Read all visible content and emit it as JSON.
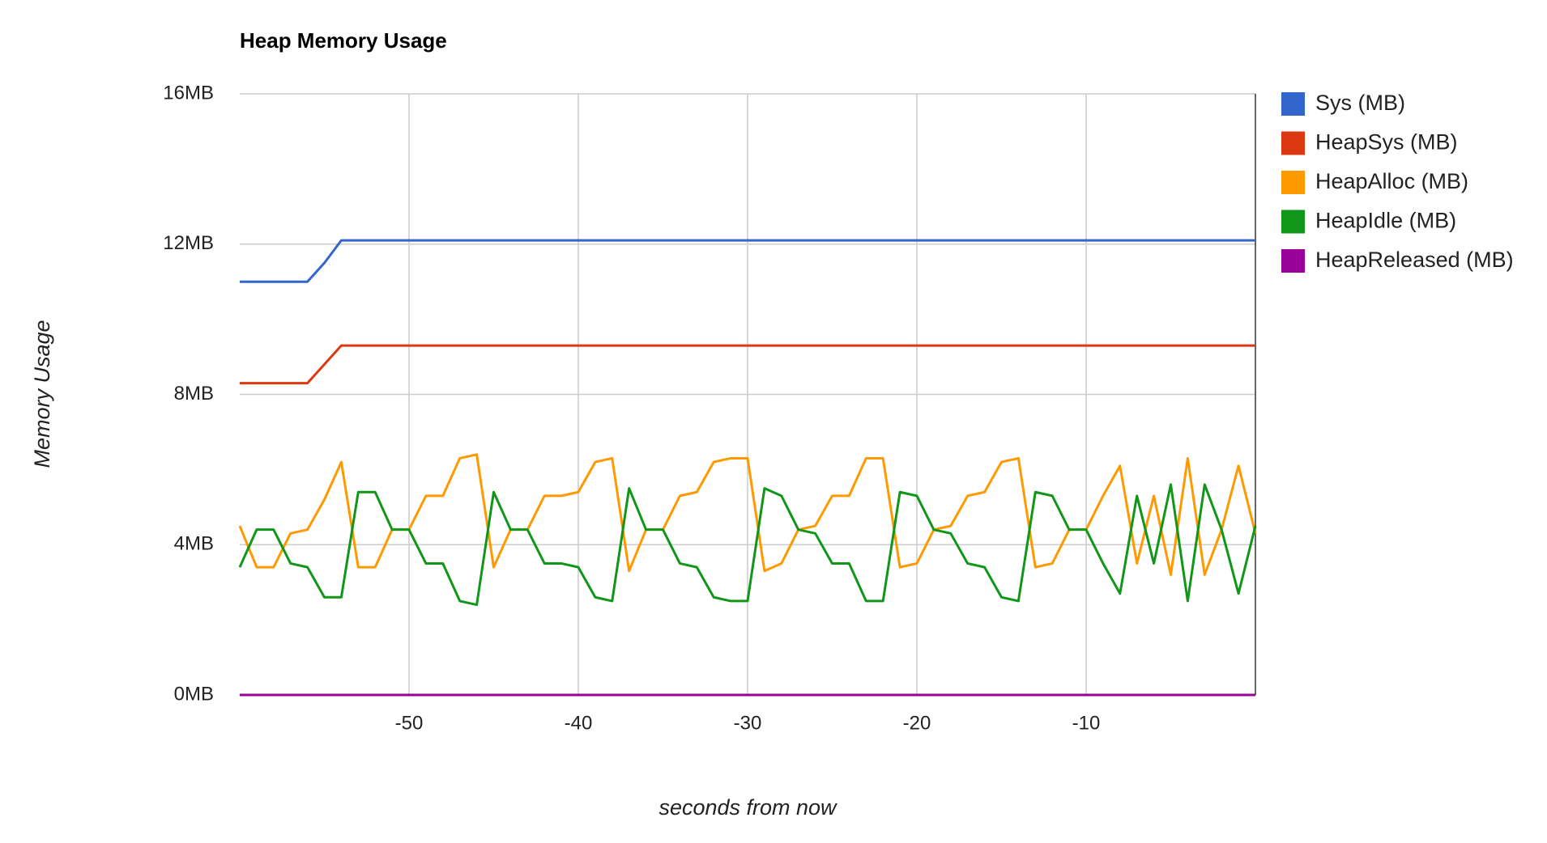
{
  "chart_data": {
    "type": "line",
    "title": "Heap Memory Usage",
    "x_label": "seconds from now",
    "y_label": "Memory Usage",
    "x": [
      -60,
      -59,
      -58,
      -57,
      -56,
      -55,
      -54,
      -53,
      -52,
      -51,
      -50,
      -49,
      -48,
      -47,
      -46,
      -45,
      -44,
      -43,
      -42,
      -41,
      -40,
      -39,
      -38,
      -37,
      -36,
      -35,
      -34,
      -33,
      -32,
      -31,
      -30,
      -29,
      -28,
      -27,
      -26,
      -25,
      -24,
      -23,
      -22,
      -21,
      -20,
      -19,
      -18,
      -17,
      -16,
      -15,
      -14,
      -13,
      -12,
      -11,
      -10,
      -9,
      -8,
      -7,
      -6,
      -5,
      -4,
      -3,
      -2,
      -1,
      0
    ],
    "series": [
      {
        "name": "Sys (MB)",
        "color": "#3366cc",
        "values": [
          11.0,
          11.0,
          11.0,
          11.0,
          11.0,
          11.5,
          12.1,
          12.1,
          12.1,
          12.1,
          12.1,
          12.1,
          12.1,
          12.1,
          12.1,
          12.1,
          12.1,
          12.1,
          12.1,
          12.1,
          12.1,
          12.1,
          12.1,
          12.1,
          12.1,
          12.1,
          12.1,
          12.1,
          12.1,
          12.1,
          12.1,
          12.1,
          12.1,
          12.1,
          12.1,
          12.1,
          12.1,
          12.1,
          12.1,
          12.1,
          12.1,
          12.1,
          12.1,
          12.1,
          12.1,
          12.1,
          12.1,
          12.1,
          12.1,
          12.1,
          12.1,
          12.1,
          12.1,
          12.1,
          12.1,
          12.1,
          12.1,
          12.1,
          12.1,
          12.1,
          12.1
        ]
      },
      {
        "name": "HeapSys (MB)",
        "color": "#dc3912",
        "values": [
          8.3,
          8.3,
          8.3,
          8.3,
          8.3,
          8.8,
          9.3,
          9.3,
          9.3,
          9.3,
          9.3,
          9.3,
          9.3,
          9.3,
          9.3,
          9.3,
          9.3,
          9.3,
          9.3,
          9.3,
          9.3,
          9.3,
          9.3,
          9.3,
          9.3,
          9.3,
          9.3,
          9.3,
          9.3,
          9.3,
          9.3,
          9.3,
          9.3,
          9.3,
          9.3,
          9.3,
          9.3,
          9.3,
          9.3,
          9.3,
          9.3,
          9.3,
          9.3,
          9.3,
          9.3,
          9.3,
          9.3,
          9.3,
          9.3,
          9.3,
          9.3,
          9.3,
          9.3,
          9.3,
          9.3,
          9.3,
          9.3,
          9.3,
          9.3,
          9.3,
          9.3
        ]
      },
      {
        "name": "HeapAlloc (MB)",
        "color": "#ff9900",
        "values": [
          4.5,
          3.4,
          3.4,
          4.3,
          4.4,
          5.2,
          6.2,
          3.4,
          3.4,
          4.4,
          4.4,
          5.3,
          5.3,
          6.3,
          6.4,
          3.4,
          4.4,
          4.4,
          5.3,
          5.3,
          5.4,
          6.2,
          6.3,
          3.3,
          4.4,
          4.4,
          5.3,
          5.4,
          6.2,
          6.3,
          6.3,
          3.3,
          3.5,
          4.4,
          4.5,
          5.3,
          5.3,
          6.3,
          6.3,
          3.4,
          3.5,
          4.4,
          4.5,
          5.3,
          5.4,
          6.2,
          6.3,
          3.4,
          3.5,
          4.4,
          4.4,
          5.3,
          6.1,
          3.5,
          5.3,
          3.2,
          6.3,
          3.2,
          4.4,
          6.1,
          4.3
        ]
      },
      {
        "name": "HeapIdle (MB)",
        "color": "#109618",
        "values": [
          3.4,
          4.4,
          4.4,
          3.5,
          3.4,
          2.6,
          2.6,
          5.4,
          5.4,
          4.4,
          4.4,
          3.5,
          3.5,
          2.5,
          2.4,
          5.4,
          4.4,
          4.4,
          3.5,
          3.5,
          3.4,
          2.6,
          2.5,
          5.5,
          4.4,
          4.4,
          3.5,
          3.4,
          2.6,
          2.5,
          2.5,
          5.5,
          5.3,
          4.4,
          4.3,
          3.5,
          3.5,
          2.5,
          2.5,
          5.4,
          5.3,
          4.4,
          4.3,
          3.5,
          3.4,
          2.6,
          2.5,
          5.4,
          5.3,
          4.4,
          4.4,
          3.5,
          2.7,
          5.3,
          3.5,
          5.6,
          2.5,
          5.6,
          4.4,
          2.7,
          4.5
        ]
      },
      {
        "name": "HeapReleased (MB)",
        "color": "#990099",
        "values": [
          0,
          0,
          0,
          0,
          0,
          0,
          0,
          0,
          0,
          0,
          0,
          0,
          0,
          0,
          0,
          0,
          0,
          0,
          0,
          0,
          0,
          0,
          0,
          0,
          0,
          0,
          0,
          0,
          0,
          0,
          0,
          0,
          0,
          0,
          0,
          0,
          0,
          0,
          0,
          0,
          0,
          0,
          0,
          0,
          0,
          0,
          0,
          0,
          0,
          0,
          0,
          0,
          0,
          0,
          0,
          0,
          0,
          0,
          0,
          0,
          0
        ]
      }
    ],
    "xlim": [
      -60,
      0
    ],
    "xticks": [
      -50,
      -40,
      -30,
      -20,
      -10
    ],
    "ylim": [
      0,
      16
    ],
    "yticks": [
      {
        "value": 0,
        "label": "0MB"
      },
      {
        "value": 4,
        "label": "4MB"
      },
      {
        "value": 8,
        "label": "8MB"
      },
      {
        "value": 12,
        "label": "12MB"
      },
      {
        "value": 16,
        "label": "16MB"
      }
    ],
    "grid": true,
    "legend": "right"
  }
}
